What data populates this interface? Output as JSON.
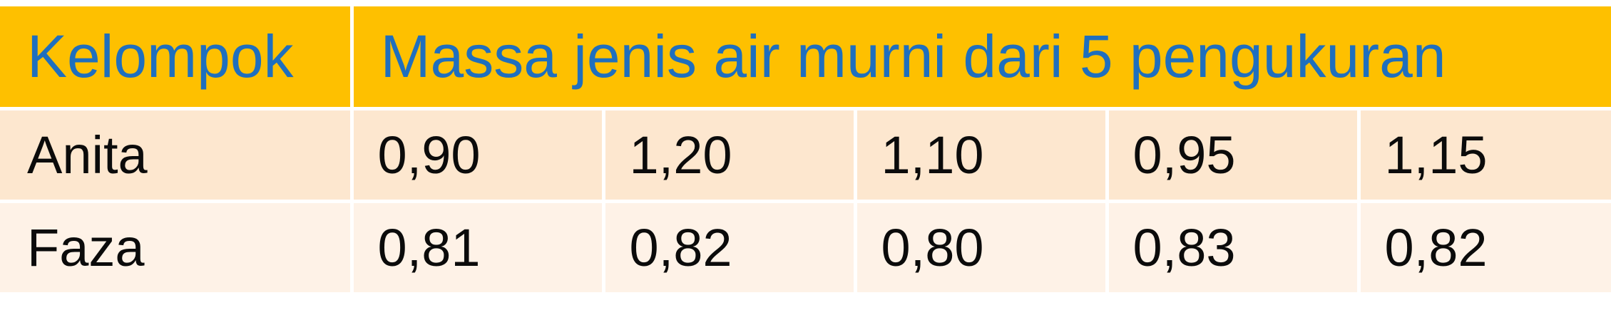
{
  "header": {
    "group_label": "Kelompok",
    "measure_label": "Massa jenis air murni dari 5 pengukuran"
  },
  "rows": [
    {
      "name": "Anita",
      "values": [
        "0,90",
        "1,20",
        "1,10",
        "0,95",
        "1,15"
      ]
    },
    {
      "name": "Faza",
      "values": [
        "0,81",
        "0,82",
        "0,80",
        "0,83",
        "0,82"
      ]
    }
  ],
  "colors": {
    "header_bg": "#fec000",
    "header_text": "#1f6fbe",
    "row_odd_bg": "#fde7cf",
    "row_even_bg": "#fef2e7",
    "body_text": "#0b0b0b"
  }
}
